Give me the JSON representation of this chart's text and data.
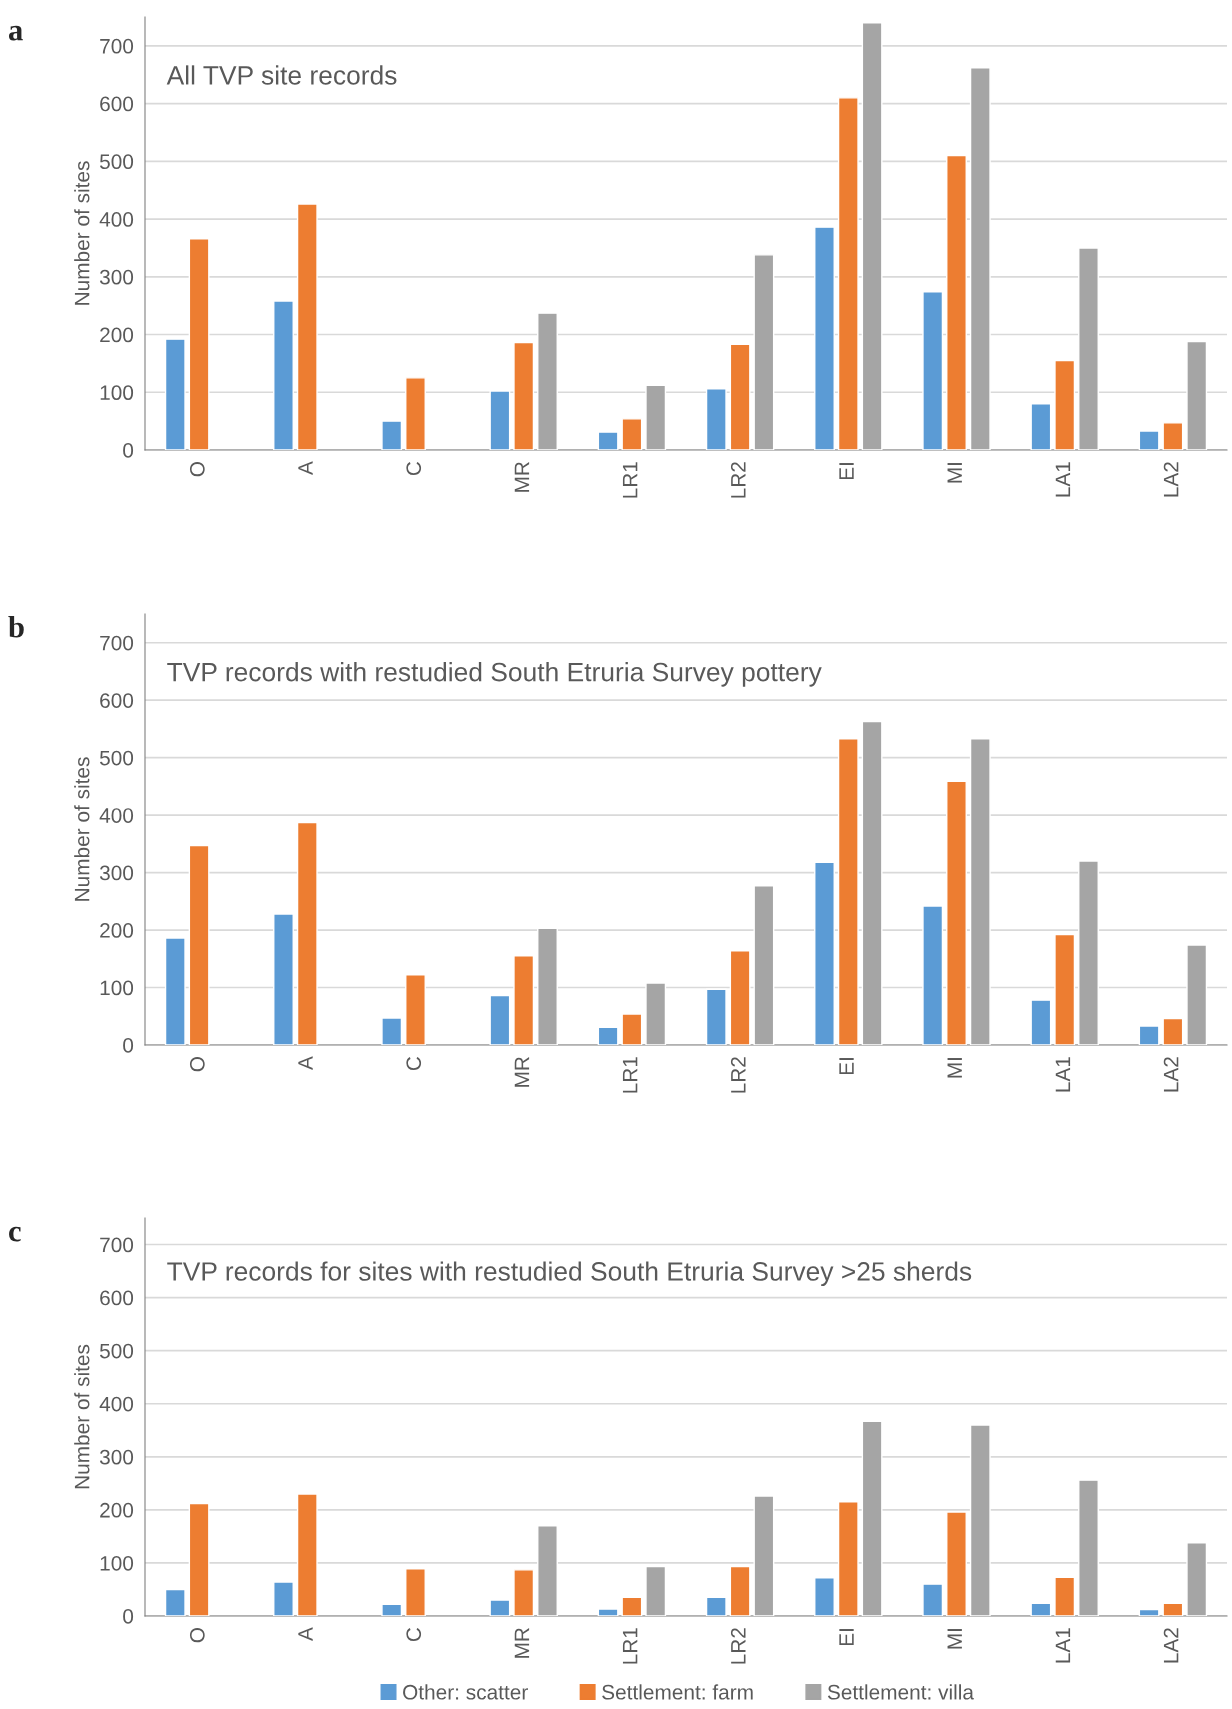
{
  "chart_data": [
    {
      "type": "bar",
      "title": "All TVP site records",
      "ylabel": "Number of sites",
      "annotations": [
        "a"
      ],
      "categories": [
        "O",
        "A",
        "C",
        "MR",
        "LR1",
        "LR2",
        "EI",
        "MI",
        "LA1",
        "LA2"
      ],
      "series": [
        {
          "color": "#5b9bd5",
          "values": [
            192,
            258,
            50,
            102,
            31,
            106,
            386,
            274,
            80,
            33
          ]
        },
        {
          "color": "#ed7d31",
          "values": [
            366,
            426,
            125,
            186,
            54,
            183,
            610,
            510,
            155,
            47
          ]
        },
        {
          "color": "#a5a5a5",
          "values": [
            null,
            null,
            null,
            237,
            112,
            338,
            740,
            662,
            350,
            188
          ]
        }
      ],
      "ylim": [
        0,
        750
      ],
      "yticks": [
        0,
        100,
        200,
        300,
        400,
        500,
        600,
        700
      ],
      "grid": "y",
      "legend": false
    },
    {
      "type": "bar",
      "title": "TVP records with restudied South Etruria Survey pottery",
      "ylabel": "Number of sites",
      "annotations": [
        "b"
      ],
      "categories": [
        "O",
        "A",
        "C",
        "MR",
        "LR1",
        "LR2",
        "EI",
        "MI",
        "LA1",
        "LA2"
      ],
      "series": [
        {
          "color": "#5b9bd5",
          "values": [
            186,
            228,
            47,
            86,
            31,
            97,
            318,
            242,
            78,
            33
          ]
        },
        {
          "color": "#ed7d31",
          "values": [
            347,
            387,
            122,
            155,
            54,
            164,
            533,
            459,
            192,
            46
          ]
        },
        {
          "color": "#a5a5a5",
          "values": [
            null,
            null,
            null,
            203,
            108,
            277,
            563,
            533,
            320,
            174
          ]
        }
      ],
      "ylim": [
        0,
        750
      ],
      "yticks": [
        0,
        100,
        200,
        300,
        400,
        500,
        600,
        700
      ],
      "grid": "y",
      "legend": false
    },
    {
      "type": "bar",
      "title": "TVP records for sites with restudied South Etruria Survey >25 sherds",
      "ylabel": "Number of sites",
      "annotations": [
        "c"
      ],
      "categories": [
        "O",
        "A",
        "C",
        "MR",
        "LR1",
        "LR2",
        "EI",
        "MI",
        "LA1",
        "LA2"
      ],
      "series": [
        {
          "name": "Other: scatter",
          "color": "#5b9bd5",
          "values": [
            50,
            64,
            22,
            30,
            13,
            35,
            72,
            60,
            24,
            12
          ]
        },
        {
          "name": "Settlement: farm",
          "color": "#ed7d31",
          "values": [
            212,
            230,
            89,
            87,
            35,
            93,
            215,
            196,
            73,
            24
          ]
        },
        {
          "name": "Settlement: villa",
          "color": "#a5a5a5",
          "values": [
            null,
            null,
            null,
            170,
            93,
            226,
            367,
            360,
            256,
            138
          ]
        }
      ],
      "ylim": [
        0,
        750
      ],
      "yticks": [
        0,
        100,
        200,
        300,
        400,
        500,
        600,
        700
      ],
      "grid": "y",
      "legend": "bottom"
    }
  ]
}
